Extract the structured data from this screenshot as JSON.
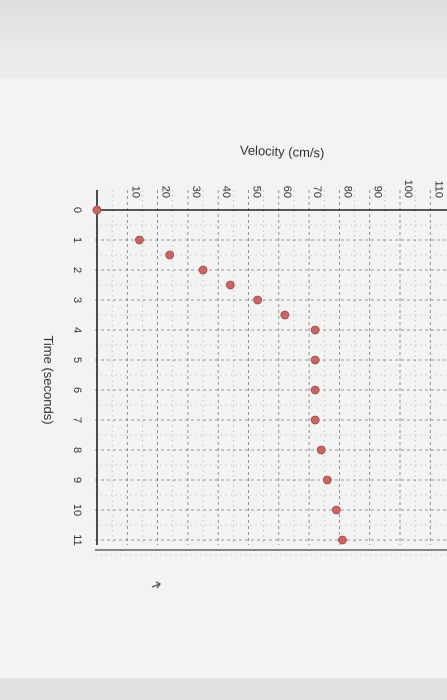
{
  "chart_data": {
    "type": "scatter",
    "orientation": "rotated-90-clockwise",
    "xlabel": "Time (seconds)",
    "ylabel": "Velocity (cm/s)",
    "xlim": [
      0,
      11
    ],
    "ylim": [
      0,
      110
    ],
    "x_ticks": [
      "0",
      "1",
      "2",
      "3",
      "4",
      "5",
      "6",
      "7",
      "8",
      "9",
      "10",
      "11"
    ],
    "y_ticks": [
      "10",
      "20",
      "30",
      "40",
      "50",
      "60",
      "70",
      "80",
      "90",
      "100",
      "110"
    ],
    "grid": true,
    "point_color": "#c96565",
    "points": [
      {
        "x": 0,
        "y": 0
      },
      {
        "x": 1,
        "y": 14
      },
      {
        "x": 1.5,
        "y": 24
      },
      {
        "x": 2,
        "y": 35
      },
      {
        "x": 2.5,
        "y": 44
      },
      {
        "x": 3,
        "y": 53
      },
      {
        "x": 3.5,
        "y": 62
      },
      {
        "x": 4,
        "y": 72
      },
      {
        "x": 5,
        "y": 72
      },
      {
        "x": 6,
        "y": 72
      },
      {
        "x": 7,
        "y": 72
      },
      {
        "x": 8,
        "y": 74
      },
      {
        "x": 9,
        "y": 76
      },
      {
        "x": 10,
        "y": 79
      },
      {
        "x": 11,
        "y": 81
      }
    ]
  }
}
